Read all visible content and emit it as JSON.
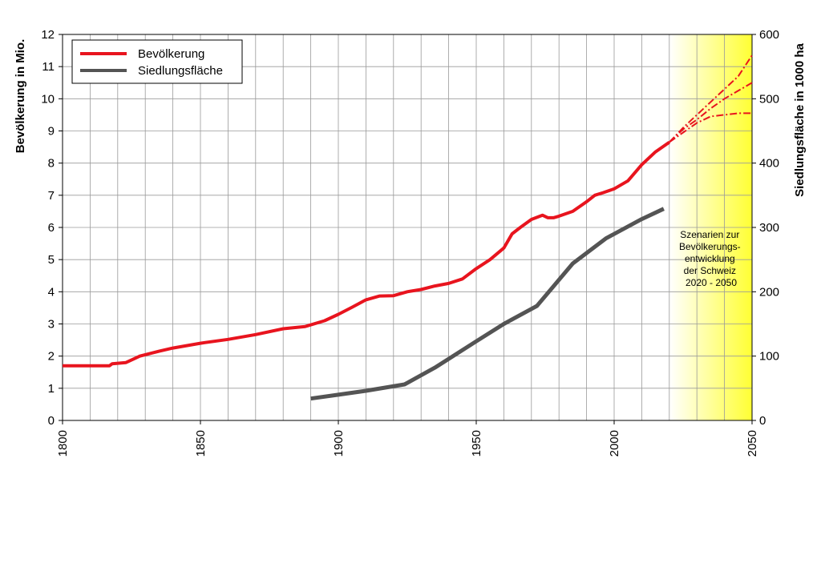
{
  "chart_data": {
    "type": "line",
    "xlim": [
      1800,
      2050
    ],
    "x_ticks": [
      1800,
      1850,
      1900,
      1950,
      2000,
      2050
    ],
    "ylim_left": [
      0,
      12
    ],
    "y_left_ticks": [
      0,
      1,
      2,
      3,
      4,
      5,
      6,
      7,
      8,
      9,
      10,
      11,
      12
    ],
    "ylim_right": [
      0,
      600
    ],
    "y_right_ticks": [
      0,
      100,
      200,
      300,
      400,
      500,
      600
    ],
    "ylabel_left": "Bevölkerung in Mio.",
    "ylabel_right": "Siedlungsfläche in 1000 ha",
    "grid": true,
    "legend_position": "top-left",
    "series": [
      {
        "name": "Bevölkerung",
        "axis": "left",
        "color": "#e8141e",
        "points": [
          [
            1800,
            1.7
          ],
          [
            1817,
            1.7
          ],
          [
            1818,
            1.76
          ],
          [
            1823,
            1.8
          ],
          [
            1826,
            1.92
          ],
          [
            1828,
            2.0
          ],
          [
            1835,
            2.15
          ],
          [
            1840,
            2.25
          ],
          [
            1850,
            2.4
          ],
          [
            1860,
            2.52
          ],
          [
            1870,
            2.67
          ],
          [
            1880,
            2.85
          ],
          [
            1888,
            2.92
          ],
          [
            1895,
            3.1
          ],
          [
            1900,
            3.3
          ],
          [
            1905,
            3.52
          ],
          [
            1910,
            3.75
          ],
          [
            1915,
            3.87
          ],
          [
            1920,
            3.88
          ],
          [
            1925,
            4.0
          ],
          [
            1930,
            4.07
          ],
          [
            1935,
            4.18
          ],
          [
            1940,
            4.26
          ],
          [
            1945,
            4.4
          ],
          [
            1950,
            4.72
          ],
          [
            1955,
            5.0
          ],
          [
            1960,
            5.36
          ],
          [
            1963,
            5.8
          ],
          [
            1966,
            6.0
          ],
          [
            1970,
            6.25
          ],
          [
            1974,
            6.38
          ],
          [
            1976,
            6.3
          ],
          [
            1978,
            6.3
          ],
          [
            1980,
            6.35
          ],
          [
            1985,
            6.5
          ],
          [
            1990,
            6.8
          ],
          [
            1993,
            7.0
          ],
          [
            1996,
            7.08
          ],
          [
            2000,
            7.2
          ],
          [
            2005,
            7.45
          ],
          [
            2010,
            7.95
          ],
          [
            2015,
            8.35
          ],
          [
            2020,
            8.65
          ]
        ]
      },
      {
        "name": "Siedlungsfläche",
        "axis": "right",
        "color": "#545454",
        "points": [
          [
            1890,
            34
          ],
          [
            1900,
            40
          ],
          [
            1910,
            46
          ],
          [
            1924,
            56
          ],
          [
            1935,
            82
          ],
          [
            1950,
            123
          ],
          [
            1960,
            150
          ],
          [
            1972,
            178
          ],
          [
            1985,
            244
          ],
          [
            1997,
            283
          ],
          [
            2010,
            313
          ],
          [
            2018,
            329
          ]
        ]
      }
    ],
    "scenarios": {
      "color": "#e8141e",
      "lines": [
        {
          "points": [
            [
              2020,
              8.65
            ],
            [
              2025,
              9.1
            ],
            [
              2030,
              9.5
            ],
            [
              2035,
              9.9
            ],
            [
              2040,
              10.3
            ],
            [
              2045,
              10.7
            ],
            [
              2050,
              11.35
            ]
          ]
        },
        {
          "points": [
            [
              2020,
              8.65
            ],
            [
              2025,
              9.05
            ],
            [
              2030,
              9.35
            ],
            [
              2035,
              9.7
            ],
            [
              2040,
              10.0
            ],
            [
              2045,
              10.25
            ],
            [
              2050,
              10.5
            ]
          ]
        },
        {
          "points": [
            [
              2020,
              8.65
            ],
            [
              2025,
              8.95
            ],
            [
              2030,
              9.25
            ],
            [
              2035,
              9.45
            ],
            [
              2040,
              9.5
            ],
            [
              2045,
              9.55
            ],
            [
              2050,
              9.55
            ]
          ]
        }
      ]
    },
    "annotation": [
      "Szenarien zur",
      "Bevölkerungs-",
      "entwicklung",
      "der Schweiz",
      "2020 - 2050"
    ],
    "scenario_band": {
      "from": 2020,
      "to": 2050,
      "color_start": "#ffffff",
      "color_end": "#ffff33"
    }
  }
}
